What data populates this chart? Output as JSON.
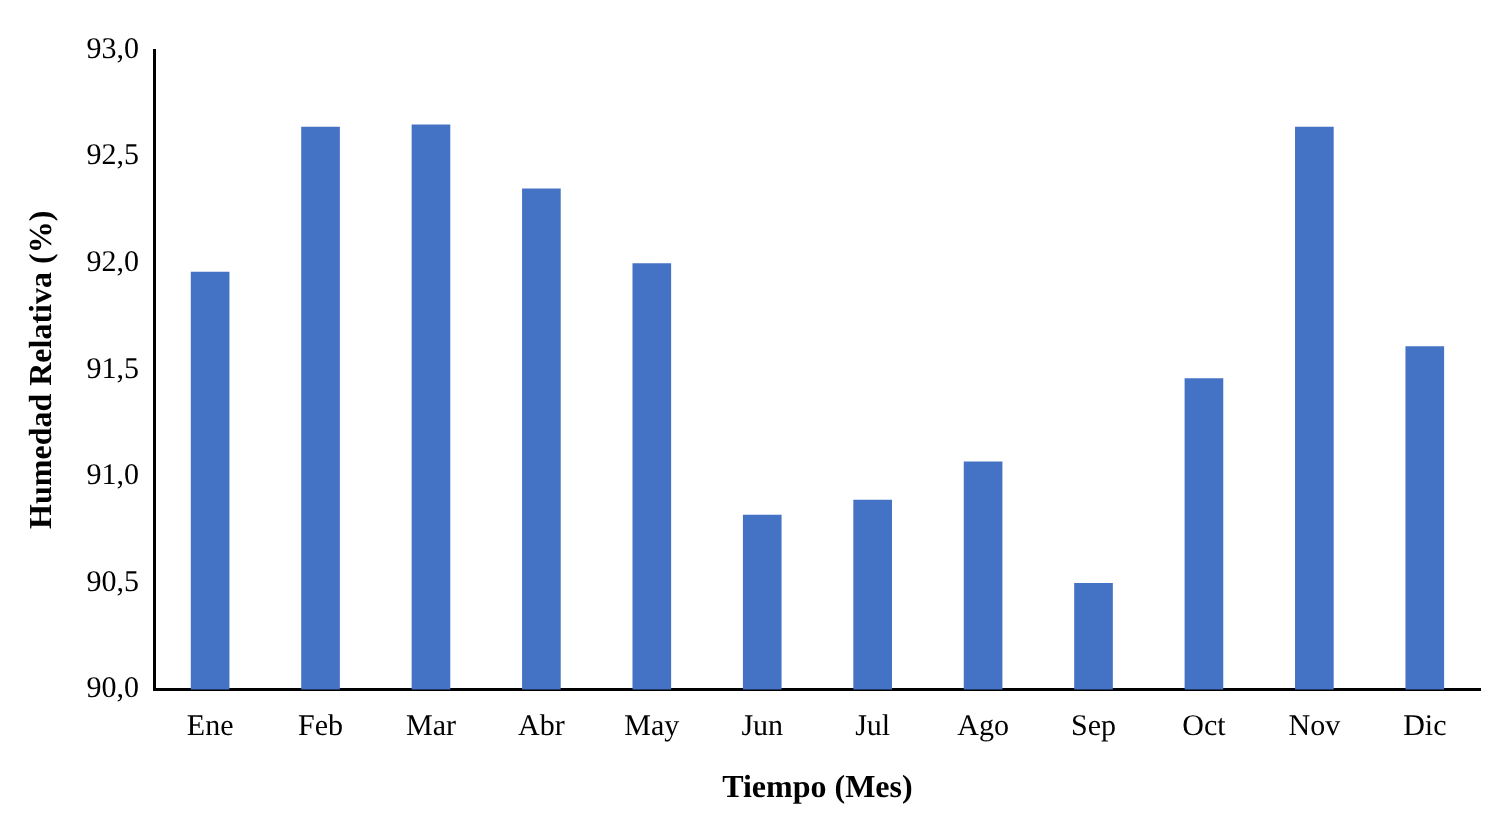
{
  "chart_data": {
    "type": "bar",
    "xlabel": "Tiempo (Mes)",
    "ylabel": "Humedad Relativa (%)",
    "categories": [
      "Ene",
      "Feb",
      "Mar",
      "Abr",
      "May",
      "Jun",
      "Jul",
      "Ago",
      "Sep",
      "Oct",
      "Nov",
      "Dic"
    ],
    "values": [
      91.96,
      92.64,
      92.65,
      92.35,
      92.0,
      90.82,
      90.89,
      91.07,
      90.5,
      91.46,
      92.64,
      91.61
    ],
    "color": "#4472c4",
    "ylim": [
      90,
      93
    ],
    "yticks": [
      {
        "value": 90,
        "label": "90,0"
      },
      {
        "value": 90.5,
        "label": "90,5"
      },
      {
        "value": 91,
        "label": "91,0"
      },
      {
        "value": 91.5,
        "label": "91,5"
      },
      {
        "value": 92,
        "label": "92,0"
      },
      {
        "value": 92.5,
        "label": "92,5"
      },
      {
        "value": 93,
        "label": "93,0"
      }
    ],
    "grid": false,
    "legend": false
  }
}
